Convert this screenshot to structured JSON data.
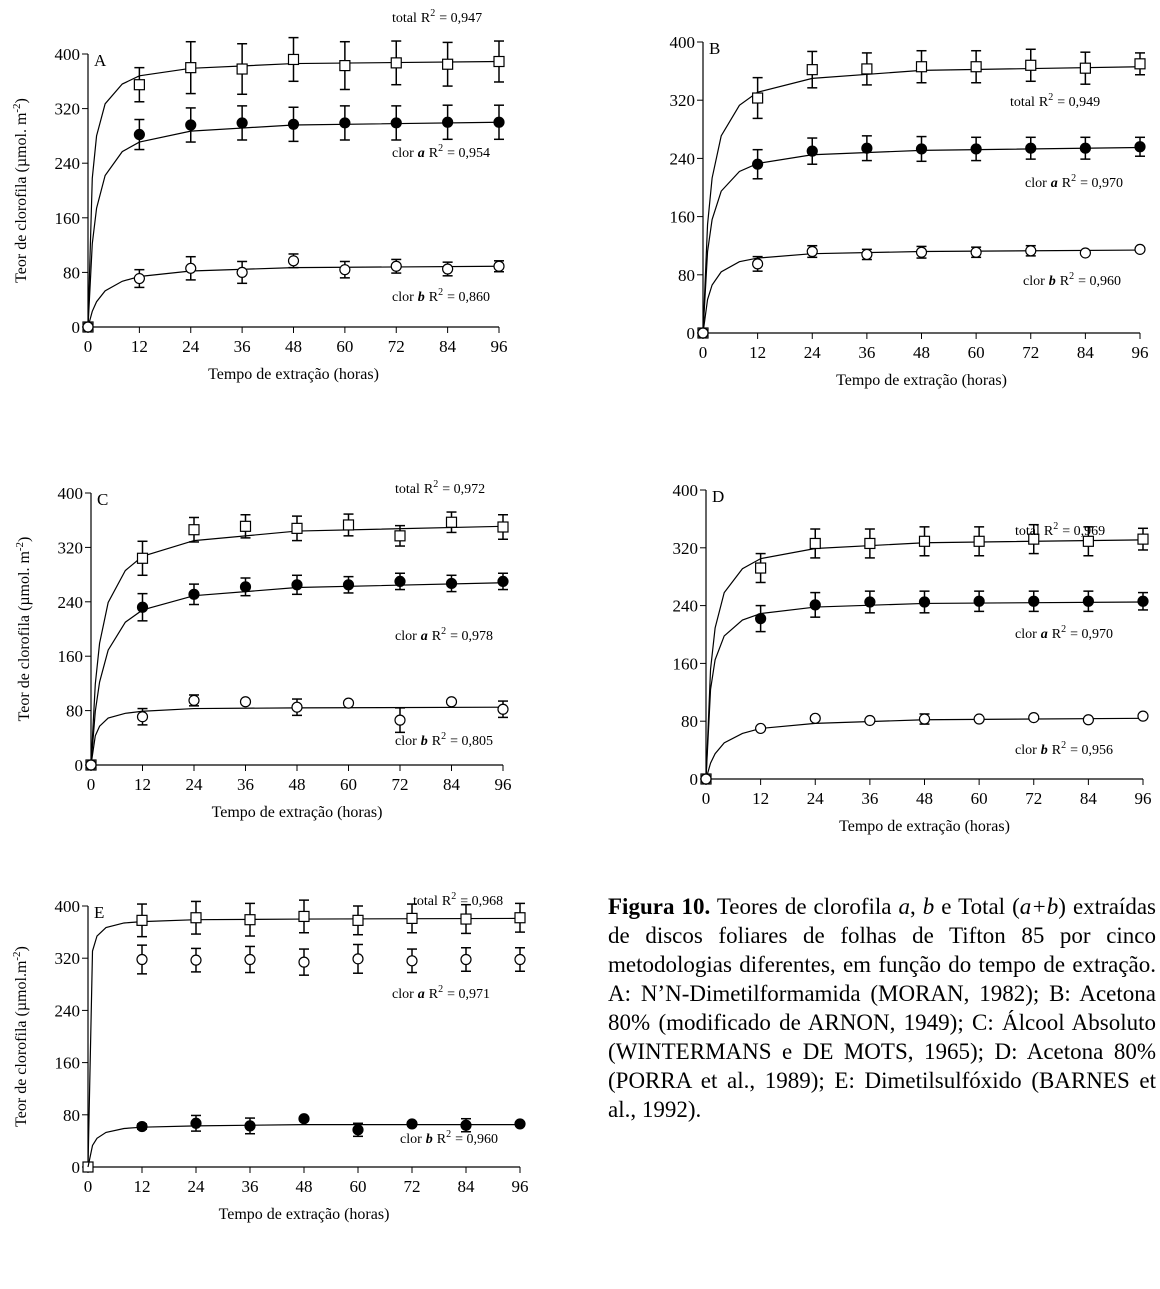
{
  "chart_data": [
    {
      "type": "scatter",
      "panel": "A",
      "xlabel": "Tempo de extração (horas)",
      "ylabel": {
        "text": "Teor de clorofila (µmol. m",
        "sup": "-2",
        "end": ")"
      },
      "xlim": [
        0,
        96
      ],
      "ylim": [
        0,
        400
      ],
      "xticks": [
        0,
        12,
        24,
        36,
        48,
        60,
        72,
        84,
        96
      ],
      "yticks": [
        0,
        80,
        160,
        240,
        320,
        400
      ],
      "x": [
        0,
        12,
        24,
        36,
        48,
        60,
        72,
        84,
        96
      ],
      "fit_x": [
        0,
        1,
        2,
        4,
        8,
        12,
        24,
        48,
        96
      ],
      "series": [
        {
          "name": "total",
          "marker": "square",
          "filled": false,
          "color": "#000000",
          "r2": {
            "text": "R",
            "sup": "2",
            "value": "= 0,947"
          },
          "values": [
            0,
            355,
            380,
            378,
            392,
            383,
            387,
            385,
            389
          ],
          "errors": [
            0,
            25,
            38,
            37,
            32,
            35,
            32,
            32,
            30
          ],
          "fit": [
            0,
            218,
            280,
            327,
            356,
            368,
            379,
            386,
            389
          ]
        },
        {
          "name": "clor",
          "name_em": "a",
          "marker": "circle",
          "filled": true,
          "color": "#000000",
          "r2": {
            "text": "R",
            "sup": "2",
            "value": "= 0,954"
          },
          "values": [
            0,
            282,
            296,
            299,
            297,
            299,
            299,
            300,
            300
          ],
          "errors": [
            0,
            22,
            25,
            25,
            25,
            25,
            25,
            25,
            25
          ],
          "fit": [
            0,
            122,
            174,
            222,
            257,
            271,
            287,
            296,
            300
          ]
        },
        {
          "name": "clor",
          "name_em": "b",
          "marker": "circle",
          "filled": false,
          "color": "#000000",
          "r2": {
            "text": "R",
            "sup": "2",
            "value": "= 0,860"
          },
          "values": [
            0,
            71,
            86,
            80,
            97,
            84,
            89,
            85,
            89
          ],
          "errors": [
            0,
            13,
            17,
            16,
            10,
            12,
            10,
            10,
            8
          ],
          "fit": [
            0,
            23,
            37,
            53,
            67,
            74,
            82,
            87,
            89
          ]
        }
      ]
    },
    {
      "type": "scatter",
      "panel": "B",
      "xlabel": "Tempo de extração (horas)",
      "xlim": [
        0,
        96
      ],
      "ylim": [
        0,
        400
      ],
      "xticks": [
        0,
        12,
        24,
        36,
        48,
        60,
        72,
        84,
        96
      ],
      "yticks": [
        0,
        80,
        160,
        240,
        320,
        400
      ],
      "x": [
        0,
        12,
        24,
        36,
        48,
        60,
        72,
        84,
        96
      ],
      "fit_x": [
        0,
        1,
        2,
        4,
        8,
        12,
        24,
        48,
        96
      ],
      "series": [
        {
          "name": "total",
          "marker": "square",
          "filled": false,
          "color": "#000000",
          "r2": {
            "text": "R",
            "sup": "2",
            "value": "= 0,949"
          },
          "values": [
            0,
            323,
            362,
            363,
            366,
            366,
            368,
            364,
            370
          ],
          "errors": [
            0,
            28,
            25,
            22,
            22,
            22,
            22,
            22,
            15
          ],
          "fit": [
            0,
            149,
            213,
            271,
            313,
            331,
            350,
            361,
            366
          ]
        },
        {
          "name": "clor",
          "name_em": "a",
          "marker": "circle",
          "filled": true,
          "color": "#000000",
          "r2": {
            "text": "R",
            "sup": "2",
            "value": "= 0,970"
          },
          "values": [
            0,
            232,
            250,
            254,
            253,
            253,
            254,
            254,
            256
          ],
          "errors": [
            0,
            20,
            18,
            17,
            17,
            16,
            15,
            15,
            13
          ],
          "fit": [
            0,
            112,
            156,
            195,
            222,
            233,
            245,
            251,
            255
          ]
        },
        {
          "name": "clor",
          "name_em": "b",
          "marker": "circle",
          "filled": false,
          "color": "#000000",
          "r2": {
            "text": "R",
            "sup": "2",
            "value": "= 0,960"
          },
          "values": [
            0,
            95,
            112,
            108,
            111,
            111,
            113,
            110,
            115
          ],
          "errors": [
            0,
            10,
            8,
            7,
            8,
            7,
            7,
            2,
            2
          ],
          "fit": [
            0,
            46,
            66,
            84,
            98,
            103,
            109,
            112,
            114
          ]
        }
      ]
    },
    {
      "type": "scatter",
      "panel": "C",
      "xlabel": "Tempo de extração (horas)",
      "ylabel": {
        "text": "Teor de clorofila (µmol. m",
        "sup": "-2",
        "end": ")"
      },
      "xlim": [
        0,
        96
      ],
      "ylim": [
        0,
        400
      ],
      "xticks": [
        0,
        12,
        24,
        36,
        48,
        60,
        72,
        84,
        96
      ],
      "yticks": [
        0,
        80,
        160,
        240,
        320,
        400
      ],
      "x": [
        0,
        12,
        24,
        36,
        48,
        60,
        72,
        84,
        96
      ],
      "fit_x": [
        0,
        1,
        2,
        4,
        8,
        12,
        24,
        48,
        96
      ],
      "series": [
        {
          "name": "total",
          "marker": "square",
          "filled": false,
          "color": "#000000",
          "r2": {
            "text": "R",
            "sup": "2",
            "value": "= 0,972"
          },
          "values": [
            0,
            304,
            346,
            351,
            348,
            353,
            337,
            357,
            350
          ],
          "errors": [
            0,
            25,
            18,
            17,
            18,
            16,
            15,
            15,
            18
          ],
          "fit": [
            0,
            119,
            179,
            239,
            286,
            307,
            330,
            344,
            351
          ]
        },
        {
          "name": "clor",
          "name_em": "a",
          "marker": "circle",
          "filled": true,
          "color": "#000000",
          "r2": {
            "text": "R",
            "sup": "2",
            "value": "= 0,978"
          },
          "values": [
            0,
            232,
            251,
            262,
            265,
            265,
            270,
            267,
            270
          ],
          "errors": [
            0,
            20,
            15,
            13,
            14,
            12,
            12,
            12,
            12
          ],
          "fit": [
            0,
            79,
            122,
            169,
            210,
            228,
            249,
            261,
            268
          ]
        },
        {
          "name": "clor",
          "name_em": "b",
          "marker": "circle",
          "filled": false,
          "color": "#000000",
          "r2": {
            "text": "R",
            "sup": "2",
            "value": "= 0,805"
          },
          "values": [
            0,
            71,
            95,
            93,
            85,
            91,
            66,
            93,
            82
          ],
          "errors": [
            0,
            12,
            8,
            3,
            12,
            3,
            18,
            3,
            12
          ],
          "fit": [
            0,
            43,
            57,
            69,
            76,
            79,
            83,
            84,
            85
          ]
        }
      ]
    },
    {
      "type": "scatter",
      "panel": "D",
      "xlabel": "Tempo de extração (horas)",
      "xlim": [
        0,
        96
      ],
      "ylim": [
        0,
        400
      ],
      "xticks": [
        0,
        12,
        24,
        36,
        48,
        60,
        72,
        84,
        96
      ],
      "yticks": [
        0,
        80,
        160,
        240,
        320,
        400
      ],
      "x": [
        0,
        12,
        24,
        36,
        48,
        60,
        72,
        84,
        96
      ],
      "fit_x": [
        0,
        1,
        2,
        4,
        8,
        12,
        24,
        48,
        96
      ],
      "series": [
        {
          "name": "total",
          "marker": "square",
          "filled": false,
          "color": "#000000",
          "r2": {
            "text": "R",
            "sup": "2",
            "value": "= 0,969"
          },
          "values": [
            0,
            292,
            326,
            326,
            329,
            329,
            332,
            329,
            332
          ],
          "errors": [
            0,
            20,
            20,
            20,
            20,
            20,
            20,
            20,
            15
          ],
          "fit": [
            0,
            152,
            209,
            258,
            291,
            305,
            319,
            327,
            331
          ]
        },
        {
          "name": "clor",
          "name_em": "a",
          "marker": "circle",
          "filled": true,
          "color": "#000000",
          "r2": {
            "text": "R",
            "sup": "2",
            "value": "= 0,970"
          },
          "values": [
            0,
            222,
            241,
            245,
            245,
            246,
            246,
            246,
            246
          ],
          "errors": [
            0,
            18,
            17,
            15,
            15,
            14,
            14,
            14,
            12
          ],
          "fit": [
            0,
            124,
            165,
            198,
            220,
            229,
            238,
            243,
            245
          ]
        },
        {
          "name": "clor",
          "name_em": "b",
          "marker": "circle",
          "filled": false,
          "color": "#000000",
          "r2": {
            "text": "R",
            "sup": "2",
            "value": "= 0,956"
          },
          "values": [
            0,
            70,
            84,
            81,
            83,
            83,
            85,
            82,
            87
          ],
          "errors": [
            0,
            2,
            3,
            2,
            7,
            2,
            2,
            2,
            2
          ],
          "fit": [
            0,
            22,
            35,
            50,
            63,
            70,
            77,
            82,
            84
          ]
        }
      ]
    },
    {
      "type": "scatter",
      "panel": "E",
      "xlabel": "Tempo de extração (horas)",
      "ylabel": {
        "text": "Teor de clorofila (µmol.m",
        "sup": "-2",
        "end": ")"
      },
      "xlim": [
        0,
        96
      ],
      "ylim": [
        0,
        400
      ],
      "xticks": [
        0,
        12,
        24,
        36,
        48,
        60,
        72,
        84,
        96
      ],
      "yticks": [
        0,
        80,
        160,
        240,
        320,
        400
      ],
      "x": [
        0,
        12,
        24,
        36,
        48,
        60,
        72,
        84,
        96
      ],
      "fit_x": [
        0,
        1,
        2,
        4,
        8,
        12,
        24,
        48,
        96
      ],
      "series": [
        {
          "name": "total",
          "marker": "square",
          "filled": false,
          "color": "#000000",
          "r2": {
            "text": "R",
            "sup": "2",
            "value": "= 0,968"
          },
          "values": [
            0,
            378,
            382,
            379,
            384,
            378,
            381,
            380,
            382
          ],
          "errors": [
            0,
            25,
            25,
            25,
            25,
            22,
            22,
            22,
            22
          ],
          "fit": [
            0,
            331,
            354,
            367,
            374,
            376,
            379,
            380,
            381
          ]
        },
        {
          "name": "clor",
          "name_em": "a",
          "marker": "circle",
          "filled": false,
          "color": "#000000",
          "r2": {
            "text": "R",
            "sup": "2",
            "value": "= 0,971"
          },
          "values": [
            null,
            318,
            317,
            318,
            314,
            319,
            316,
            318,
            318
          ],
          "errors": [
            null,
            22,
            18,
            20,
            20,
            22,
            18,
            18,
            18
          ]
        },
        {
          "name": "clor",
          "name_em": "b",
          "marker": "circle",
          "filled": true,
          "color": "#000000",
          "r2": {
            "text": "R",
            "sup": "2",
            "value": "= 0,960"
          },
          "values": [
            null,
            62,
            67,
            63,
            74,
            57,
            66,
            64,
            66
          ],
          "errors": [
            null,
            4,
            12,
            12,
            3,
            10,
            3,
            10,
            3
          ],
          "fit": [
            0,
            33,
            44,
            53,
            59,
            61,
            63,
            65,
            65
          ]
        }
      ]
    }
  ],
  "caption": {
    "label": "Figura 10.",
    "parts": [
      {
        "text": " Teores de clorofila "
      },
      {
        "text": "a",
        "italic": true
      },
      {
        "text": ", "
      },
      {
        "text": "b",
        "italic": true
      },
      {
        "text": " e Total ("
      },
      {
        "text": "a+b",
        "italic": true
      },
      {
        "text": ") extraídas de discos foliares de folhas de Tifton 85 por cinco metodologias diferentes, em função do tempo de extração. A: N’N-Dimetilformamida (MORAN, 1982); B: Acetona 80% (modificado de ARNON, 1949); C: Álcool Absoluto (WINTERMANS e DE MOTS, 1965); D: Acetona 80% (PORRA et al., 1989); E: Dimetilsulfóxido (BARNES et al., 1992)."
      }
    ]
  }
}
